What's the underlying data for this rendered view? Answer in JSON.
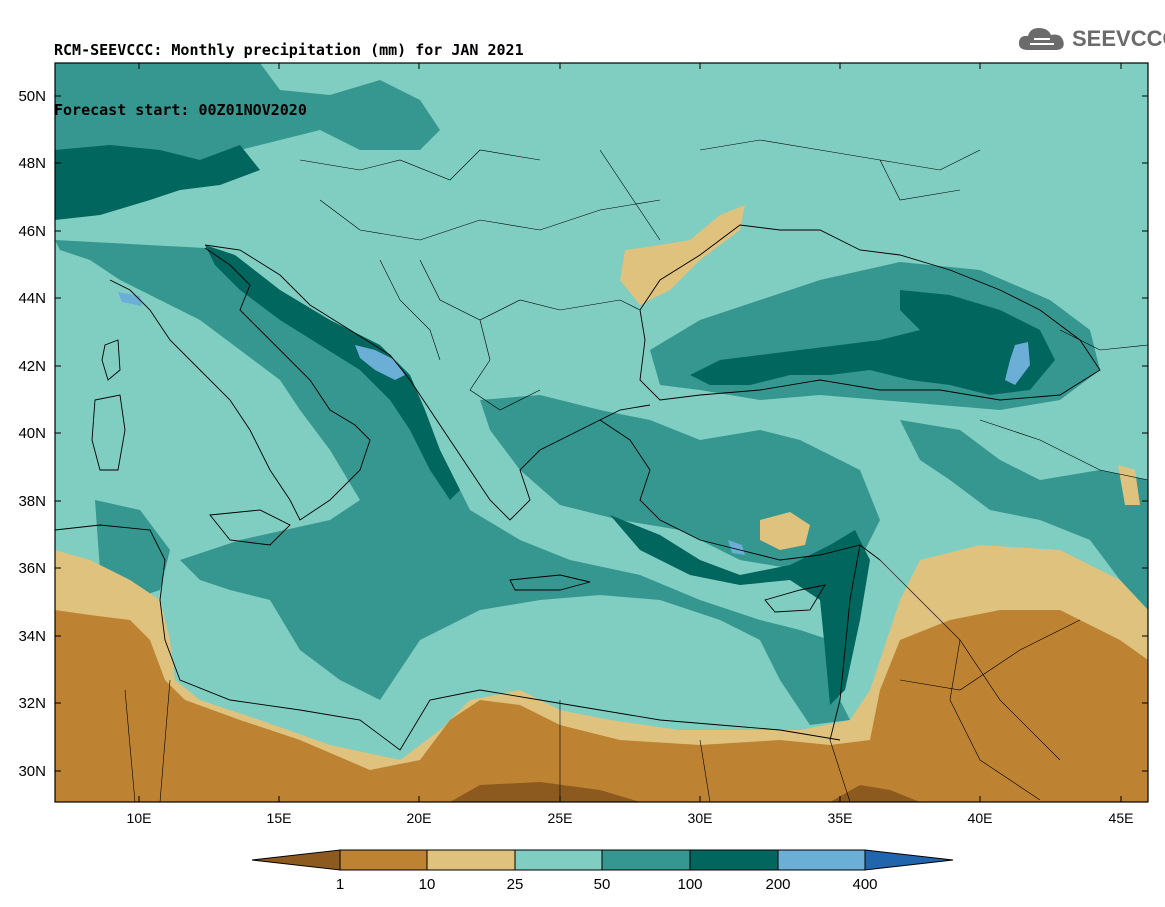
{
  "title": {
    "line1": "RCM-SEEVCCC: Monthly precipitation (mm) for JAN 2021",
    "line2": "Forecast start: 00Z01NOV2020"
  },
  "logo": {
    "text": "SEEVCCC",
    "icon": "cloud-icon"
  },
  "map": {
    "lat_labels": [
      "50N",
      "48N",
      "46N",
      "44N",
      "42N",
      "40N",
      "38N",
      "36N",
      "34N",
      "32N",
      "30N"
    ],
    "lon_labels": [
      "10E",
      "15E",
      "20E",
      "25E",
      "30E",
      "35E",
      "40E",
      "45E"
    ]
  },
  "colorbar": {
    "levels": [
      "1",
      "10",
      "25",
      "50",
      "100",
      "200",
      "400"
    ],
    "colors": [
      "#8c5a1e",
      "#bd8232",
      "#dfc27d",
      "#80cdc1",
      "#35978f",
      "#01665e",
      "#6baed6",
      "#2166ac"
    ]
  }
}
